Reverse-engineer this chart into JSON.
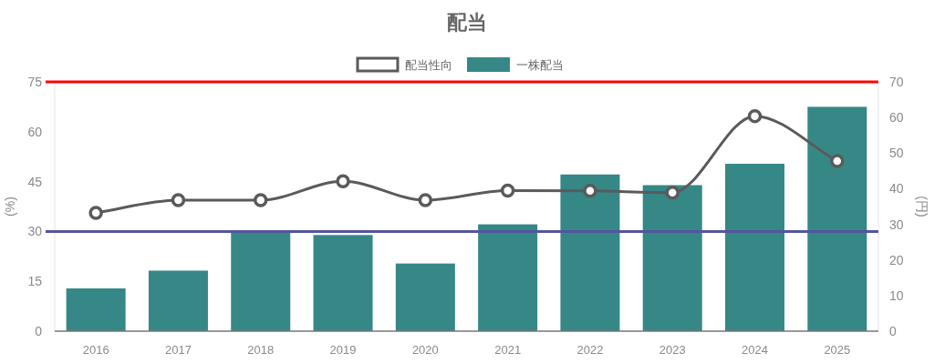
{
  "chart_data": {
    "type": "bar",
    "title": "配当",
    "ylabel": "(%)",
    "y2label": "(円)",
    "categories": [
      "2016",
      "2017",
      "2018",
      "2019",
      "2020",
      "2021",
      "2022",
      "2023",
      "2024",
      "2025"
    ],
    "series": [
      {
        "name": "配当性向",
        "type": "line",
        "color": "#5a5a5a",
        "values": [
          35.6,
          39.4,
          39.4,
          45.1,
          39.4,
          42.3,
          42.2,
          41.7,
          64.7,
          51.2
        ]
      },
      {
        "name": "一株配当",
        "axis": "y2",
        "color": "#368886",
        "values": [
          12,
          17,
          28,
          27,
          19,
          30,
          44,
          41,
          47,
          63
        ]
      }
    ],
    "ylim": [
      0,
      75
    ],
    "yticks": [
      0,
      15,
      30,
      45,
      60,
      75
    ],
    "y2lim": [
      0,
      70
    ],
    "y2ticks": [
      0,
      10,
      20,
      30,
      40,
      50,
      60,
      70
    ],
    "ref_lines": [
      {
        "axis": "y",
        "value": 75,
        "color": "#ff0000"
      },
      {
        "axis": "y",
        "value": 30,
        "color": "#5355a0"
      }
    ],
    "legend": "top",
    "grid": false,
    "marker": "circle",
    "line_style": "solid"
  }
}
